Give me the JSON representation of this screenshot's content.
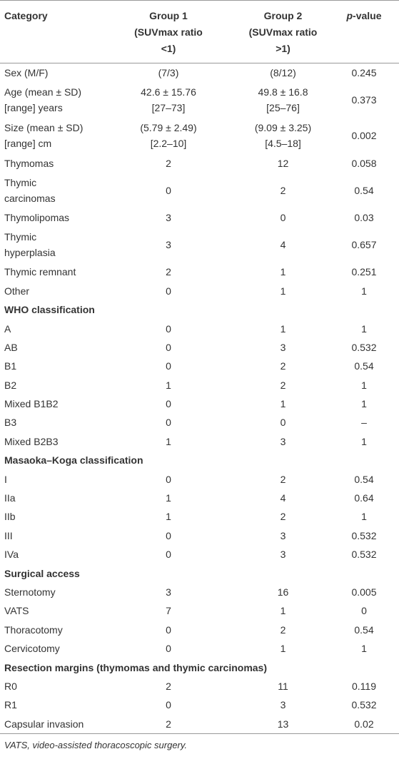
{
  "table": {
    "header": [
      [
        "Category"
      ],
      [
        "Group 1",
        "(SUVmax ratio",
        "<1)"
      ],
      [
        "Group 2",
        "(SUVmax ratio",
        ">1)"
      ],
      {
        "italic": "p",
        "rest": "-value"
      }
    ],
    "rows": [
      {
        "cells": [
          "Sex (M/F)",
          "(7/3)",
          "(8/12)",
          0.245
        ]
      },
      {
        "cells": [
          [
            "Age (mean ± SD)",
            "[range] years"
          ],
          [
            "42.6 ± 15.76",
            "[27–73]"
          ],
          [
            "49.8 ± 16.8",
            "[25–76]"
          ],
          0.373
        ]
      },
      {
        "cells": [
          [
            "Size (mean ± SD)",
            "[range] cm"
          ],
          [
            "(5.79 ± 2.49)",
            "[2.2–10]"
          ],
          [
            "(9.09 ± 3.25)",
            "[4.5–18]"
          ],
          0.002
        ]
      },
      {
        "cells": [
          "Thymomas",
          2,
          12,
          0.058
        ]
      },
      {
        "cells": [
          [
            "Thymic",
            "carcinomas"
          ],
          0,
          2,
          0.54
        ]
      },
      {
        "cells": [
          "Thymolipomas",
          3,
          0,
          0.03
        ]
      },
      {
        "cells": [
          [
            "Thymic",
            "hyperplasia"
          ],
          3,
          4,
          0.657
        ]
      },
      {
        "cells": [
          "Thymic remnant",
          2,
          1,
          0.251
        ]
      },
      {
        "cells": [
          "Other",
          0,
          1,
          1
        ]
      },
      {
        "section": "WHO classification"
      },
      {
        "cells": [
          "A",
          0,
          1,
          1
        ]
      },
      {
        "cells": [
          "AB",
          0,
          3,
          0.532
        ]
      },
      {
        "cells": [
          "B1",
          0,
          2,
          0.54
        ]
      },
      {
        "cells": [
          "B2",
          1,
          2,
          1
        ]
      },
      {
        "cells": [
          "Mixed B1B2",
          0,
          1,
          1
        ]
      },
      {
        "cells": [
          "B3",
          0,
          0,
          "–"
        ]
      },
      {
        "cells": [
          "Mixed B2B3",
          1,
          3,
          1
        ]
      },
      {
        "section": "Masaoka–Koga classification"
      },
      {
        "cells": [
          "I",
          0,
          2,
          0.54
        ]
      },
      {
        "cells": [
          "IIa",
          1,
          4,
          0.64
        ]
      },
      {
        "cells": [
          "IIb",
          1,
          2,
          1
        ]
      },
      {
        "cells": [
          "III",
          0,
          3,
          0.532
        ]
      },
      {
        "cells": [
          "IVa",
          0,
          3,
          0.532
        ]
      },
      {
        "section": "Surgical access"
      },
      {
        "cells": [
          "Sternotomy",
          3,
          16,
          0.005
        ]
      },
      {
        "cells": [
          "VATS",
          7,
          1,
          0
        ]
      },
      {
        "cells": [
          "Thoracotomy",
          0,
          2,
          0.54
        ]
      },
      {
        "cells": [
          "Cervicotomy",
          0,
          1,
          1
        ]
      },
      {
        "section": "Resection margins (thymomas and thymic carcinomas)"
      },
      {
        "cells": [
          "R0",
          2,
          11,
          0.119
        ]
      },
      {
        "cells": [
          "R1",
          0,
          3,
          0.532
        ]
      },
      {
        "cells": [
          "Capsular invasion",
          2,
          13,
          0.02
        ]
      }
    ],
    "footnote": "VATS, video-assisted thoracoscopic surgery."
  }
}
